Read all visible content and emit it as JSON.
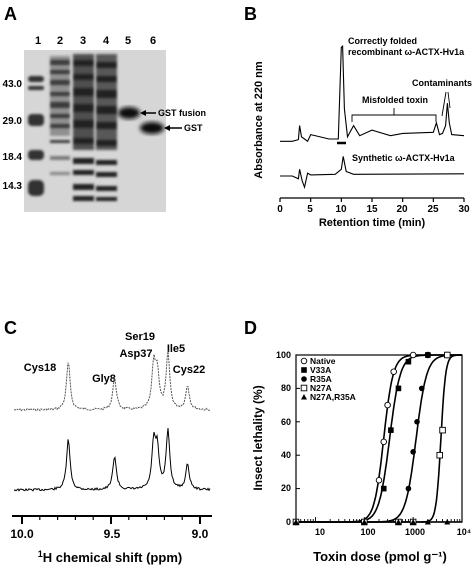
{
  "panels": {
    "A": {
      "letter": "A",
      "lane_labels": [
        "1",
        "2",
        "3",
        "4",
        "5",
        "6"
      ],
      "mw_labels": [
        "43.0",
        "29.0",
        "18.4",
        "14.3"
      ],
      "annotations": {
        "fusion": "GST fusion",
        "gst": "GST"
      }
    },
    "B": {
      "letter": "B",
      "ylabel": "Absorbance at 220 nm",
      "xlabel": "Retention time (min)",
      "x_ticks": [
        "0",
        "5",
        "10",
        "15",
        "20",
        "25",
        "30"
      ],
      "annotations": {
        "correct_line1": "Correctly folded",
        "correct_line2": "recombinant ω-ACTX-Hv1a",
        "misfolded": "Misfolded toxin",
        "contaminants": "Contaminants",
        "synthetic": "Synthetic ω-ACTX-Hv1a"
      }
    },
    "C": {
      "letter": "C",
      "peak_labels": [
        "Cys18",
        "Gly8",
        "Asp37",
        "Ser19",
        "Ile5",
        "Cys22"
      ],
      "x_ticks": [
        "10.0",
        "9.5",
        "9.0"
      ],
      "xlabel_pre": "1",
      "xlabel_main": "H chemical shift (ppm)"
    },
    "D": {
      "letter": "D",
      "ylabel": "Insect lethality (%)",
      "xlabel": "Toxin dose (pmol g⁻¹)",
      "y_ticks": [
        "0",
        "20",
        "40",
        "60",
        "80",
        "100"
      ],
      "x_ticks": [
        "10",
        "100",
        "1000",
        "10⁴"
      ],
      "legend": [
        "Native",
        "V33A",
        "R35A",
        "N27A",
        "N27A,R35A"
      ]
    }
  },
  "chart_data": [
    {
      "type": "line",
      "panel": "B",
      "xlabel": "Retention time (min)",
      "ylabel": "Absorbance at 220 nm",
      "xlim": [
        0,
        30
      ],
      "series": [
        {
          "name": "Correctly folded recombinant ω-ACTX-Hv1a",
          "x": [
            0,
            2,
            3,
            3.2,
            3.5,
            4,
            4.5,
            5,
            8,
            9.5,
            10,
            10.2,
            10.5,
            11,
            12,
            13,
            15,
            18,
            20,
            25,
            25.5,
            26,
            26.5,
            27,
            27.3,
            27.6,
            28,
            30
          ],
          "y": [
            0.62,
            0.62,
            0.65,
            0.9,
            0.7,
            0.66,
            0.62,
            0.74,
            0.66,
            0.66,
            2.3,
            2.32,
            1.2,
            0.7,
            0.9,
            0.72,
            0.82,
            0.72,
            0.76,
            0.78,
            0.95,
            0.74,
            0.76,
            0.9,
            1.3,
            0.95,
            0.74,
            0.72
          ]
        },
        {
          "name": "Synthetic ω-ACTX-Hv1a",
          "x": [
            0,
            2,
            3,
            3.2,
            3.6,
            4,
            4.5,
            5,
            9,
            10,
            10.3,
            10.8,
            12,
            30
          ],
          "y": [
            0.0,
            0.0,
            -0.05,
            0.12,
            -0.08,
            -0.2,
            0.05,
            0.02,
            0.03,
            0.12,
            0.35,
            0.08,
            0.03,
            0.04
          ]
        }
      ]
    },
    {
      "type": "scatter",
      "panel": "D",
      "xlabel": "Toxin dose (pmol g⁻¹)",
      "ylabel": "Insect lethality (%)",
      "x_scale": "log",
      "xlim": [
        4,
        10000
      ],
      "ylim": [
        0,
        100
      ],
      "series": [
        {
          "name": "Native",
          "x": [
            4,
            100,
            200,
            250,
            300,
            400,
            1000,
            2000,
            5000
          ],
          "y": [
            0,
            0,
            25,
            48,
            70,
            90,
            100,
            100,
            100
          ]
        },
        {
          "name": "V33A",
          "x": [
            4,
            100,
            250,
            350,
            500,
            800,
            2000,
            5000
          ],
          "y": [
            0,
            0,
            20,
            55,
            80,
            96,
            100,
            100
          ]
        },
        {
          "name": "R35A",
          "x": [
            4,
            100,
            500,
            800,
            1000,
            1200,
            1500,
            2000,
            5000
          ],
          "y": [
            0,
            0,
            0,
            20,
            42,
            60,
            80,
            100,
            100
          ]
        },
        {
          "name": "N27A",
          "x": [
            4,
            100,
            500,
            1000,
            3500,
            4000,
            5000
          ],
          "y": [
            0,
            0,
            0,
            0,
            40,
            55,
            100
          ]
        },
        {
          "name": "N27A,R35A",
          "x": [
            4,
            100,
            500,
            1000,
            2000,
            5000
          ],
          "y": [
            0,
            0,
            0,
            0,
            0,
            0
          ]
        }
      ]
    }
  ]
}
